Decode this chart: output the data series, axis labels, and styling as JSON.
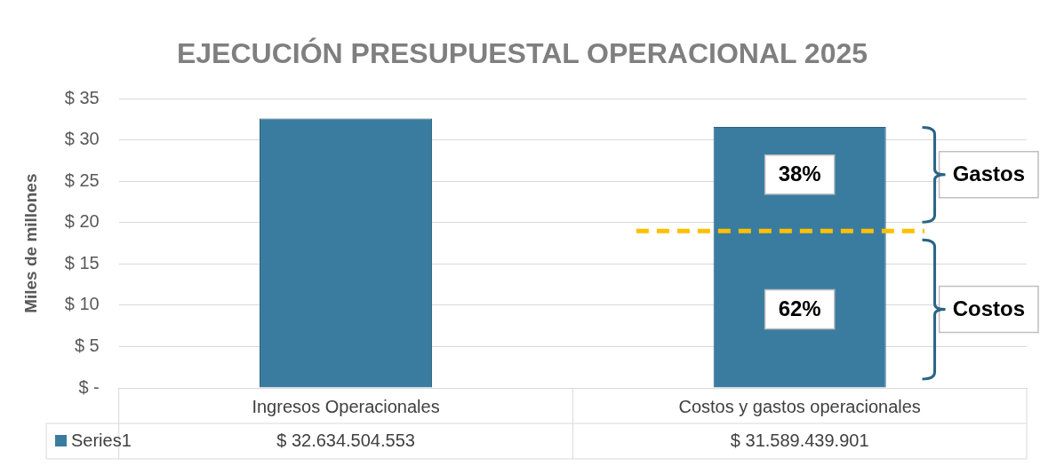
{
  "chart_data": {
    "type": "bar",
    "title": "EJECUCIÓN PRESUPUESTAL OPERACIONAL 2025",
    "ylabel": "Miles de millones",
    "categories": [
      "Ingresos Operacionales",
      "Costos y gastos operacionales"
    ],
    "series": [
      {
        "name": "Series1",
        "color": "#3a7ca0",
        "values": [
          32.63,
          31.59
        ]
      }
    ],
    "ylim": [
      0,
      35
    ],
    "yticks": [
      {
        "value": 0,
        "label": "$ -"
      },
      {
        "value": 5,
        "label": "$ 5"
      },
      {
        "value": 10,
        "label": "$ 10"
      },
      {
        "value": 15,
        "label": "$ 15"
      },
      {
        "value": 20,
        "label": "$ 20"
      },
      {
        "value": 25,
        "label": "$ 25"
      },
      {
        "value": 30,
        "label": "$ 30"
      },
      {
        "value": 35,
        "label": "$ 35"
      }
    ],
    "grid": "y",
    "legend": "bottom",
    "ref_lines": [
      {
        "axis": "y",
        "value": 19,
        "color": "#ffc000",
        "line_style": "dashed"
      }
    ],
    "annotations": [
      "38%",
      "62%",
      "Gastos",
      "Costos",
      "$ 32.634.504.553",
      "$ 31.589.439.901"
    ]
  }
}
